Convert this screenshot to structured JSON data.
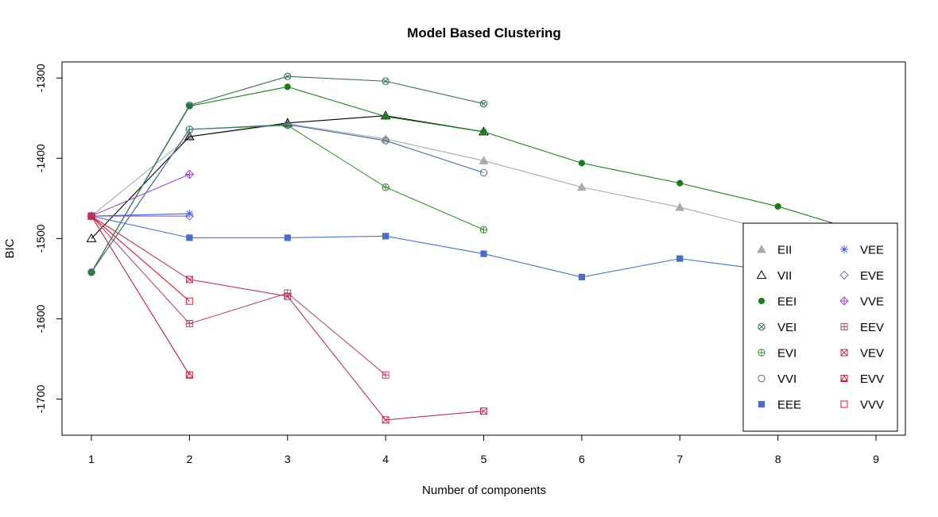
{
  "chart_data": {
    "type": "line",
    "title": "Model Based Clustering",
    "xlabel": "Number of components",
    "ylabel": "BIC",
    "xlim": [
      0.7,
      9.3
    ],
    "ylim": [
      -1745,
      -1280
    ],
    "x_ticks": [
      1,
      2,
      3,
      4,
      5,
      6,
      7,
      8,
      9
    ],
    "y_ticks": [
      -1700,
      -1600,
      -1500,
      -1400,
      -1300
    ],
    "legend_position": "bottom-right",
    "series": [
      {
        "name": "EII",
        "color": "#AAAAAA",
        "symbol": "tri-filled",
        "x": [
          1,
          2,
          3,
          4,
          5,
          6,
          7,
          8,
          9
        ],
        "values": [
          -1472,
          -1373,
          -1357,
          -1376,
          -1403,
          -1436,
          -1461,
          -1492,
          -1510
        ]
      },
      {
        "name": "VII",
        "color": "#000000",
        "symbol": "tri-open",
        "x": [
          1,
          2,
          3,
          4,
          5
        ],
        "values": [
          -1500,
          -1373,
          -1356,
          -1347,
          -1367
        ]
      },
      {
        "name": "EEI",
        "color": "#1E7A1E",
        "symbol": "dot",
        "x": [
          1,
          2,
          3,
          4,
          5,
          6,
          7,
          8,
          9
        ],
        "values": [
          -1542,
          -1335,
          -1311,
          -1348,
          -1367,
          -1406,
          -1431,
          -1460,
          -1497
        ]
      },
      {
        "name": "VEI",
        "color": "#3A6F5A",
        "symbol": "circle-x",
        "x": [
          1,
          2,
          3,
          4,
          5
        ],
        "values": [
          -1542,
          -1334,
          -1298,
          -1304,
          -1332
        ]
      },
      {
        "name": "EVI",
        "color": "#3A8F3A",
        "symbol": "circle-plus",
        "x": [
          1,
          2,
          3,
          4,
          5
        ],
        "values": [
          -1542,
          -1364,
          -1359,
          -1436,
          -1489
        ]
      },
      {
        "name": "VVI",
        "color": "#4A6B9A",
        "symbol": "circle-open",
        "x": [
          1,
          2,
          3,
          4,
          5
        ],
        "values": [
          -1542,
          -1364,
          -1358,
          -1378,
          -1418
        ]
      },
      {
        "name": "EEE",
        "color": "#4A6FBF",
        "symbol": "square-filled",
        "x": [
          1,
          2,
          3,
          4,
          5,
          6,
          7,
          8
        ],
        "values": [
          -1472,
          -1499,
          -1499,
          -1497,
          -1519,
          -1548,
          -1525,
          -1541
        ]
      },
      {
        "name": "VEE",
        "color": "#3F5FE0",
        "symbol": "asterisk",
        "x": [
          1,
          2
        ],
        "values": [
          -1472,
          -1469
        ]
      },
      {
        "name": "EVE",
        "color": "#7B5FD0",
        "symbol": "diamond-open",
        "x": [
          1,
          2
        ],
        "values": [
          -1472,
          -1472
        ]
      },
      {
        "name": "VVE",
        "color": "#9A4FBF",
        "symbol": "diamond-plus",
        "x": [
          1,
          2
        ],
        "values": [
          -1472,
          -1420
        ]
      },
      {
        "name": "EEV",
        "color": "#B04A7A",
        "symbol": "square-plus",
        "x": [
          1,
          2,
          3,
          4
        ],
        "values": [
          -1472,
          -1606,
          -1568,
          -1670
        ]
      },
      {
        "name": "VEV",
        "color": "#B83058",
        "symbol": "square-x",
        "x": [
          1,
          2,
          3,
          4,
          5
        ],
        "values": [
          -1472,
          -1551,
          -1572,
          -1726,
          -1715
        ]
      },
      {
        "name": "EVV",
        "color": "#C0203A",
        "symbol": "square-tri",
        "x": [
          1,
          2
        ],
        "values": [
          -1472,
          -1670
        ]
      },
      {
        "name": "VVV",
        "color": "#D02030",
        "symbol": "square-open",
        "x": [
          1,
          2
        ],
        "values": [
          -1472,
          -1578
        ]
      }
    ]
  }
}
